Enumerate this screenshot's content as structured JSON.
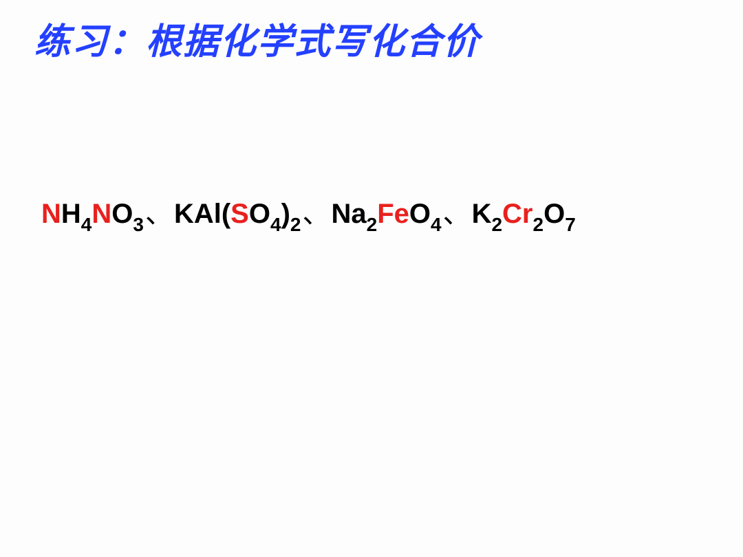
{
  "title": "练习：根据化学式写化合价",
  "colors": {
    "title": "#2440ff",
    "text": "#000000",
    "highlight": "#e8211e",
    "background": "#fdfdfd"
  },
  "typography": {
    "title_fontsize": 52,
    "formula_fontsize": 40,
    "title_fontweight": "bold",
    "formula_fontweight": "bold",
    "title_fontstyle": "italic"
  },
  "formulas": [
    {
      "parts": [
        {
          "text": "N",
          "red": true
        },
        {
          "text": "H"
        },
        {
          "text": "4",
          "sub": true
        },
        {
          "text": "N",
          "red": true
        },
        {
          "text": "O"
        },
        {
          "text": "3",
          "sub": true
        }
      ]
    },
    {
      "parts": [
        {
          "text": "KAl("
        },
        {
          "text": "S",
          "red": true
        },
        {
          "text": "O"
        },
        {
          "text": "4",
          "sub": true
        },
        {
          "text": ")"
        },
        {
          "text": "2",
          "sub": true
        }
      ]
    },
    {
      "parts": [
        {
          "text": "Na"
        },
        {
          "text": "2",
          "sub": true
        },
        {
          "text": "Fe",
          "red": true
        },
        {
          "text": "O"
        },
        {
          "text": "4",
          "sub": true
        }
      ]
    },
    {
      "parts": [
        {
          "text": "K"
        },
        {
          "text": "2",
          "sub": true
        },
        {
          "text": "Cr",
          "red": true
        },
        {
          "text": "2",
          "sub": true
        },
        {
          "text": "O"
        },
        {
          "text": "7",
          "sub": true
        }
      ]
    }
  ],
  "separator": "、"
}
